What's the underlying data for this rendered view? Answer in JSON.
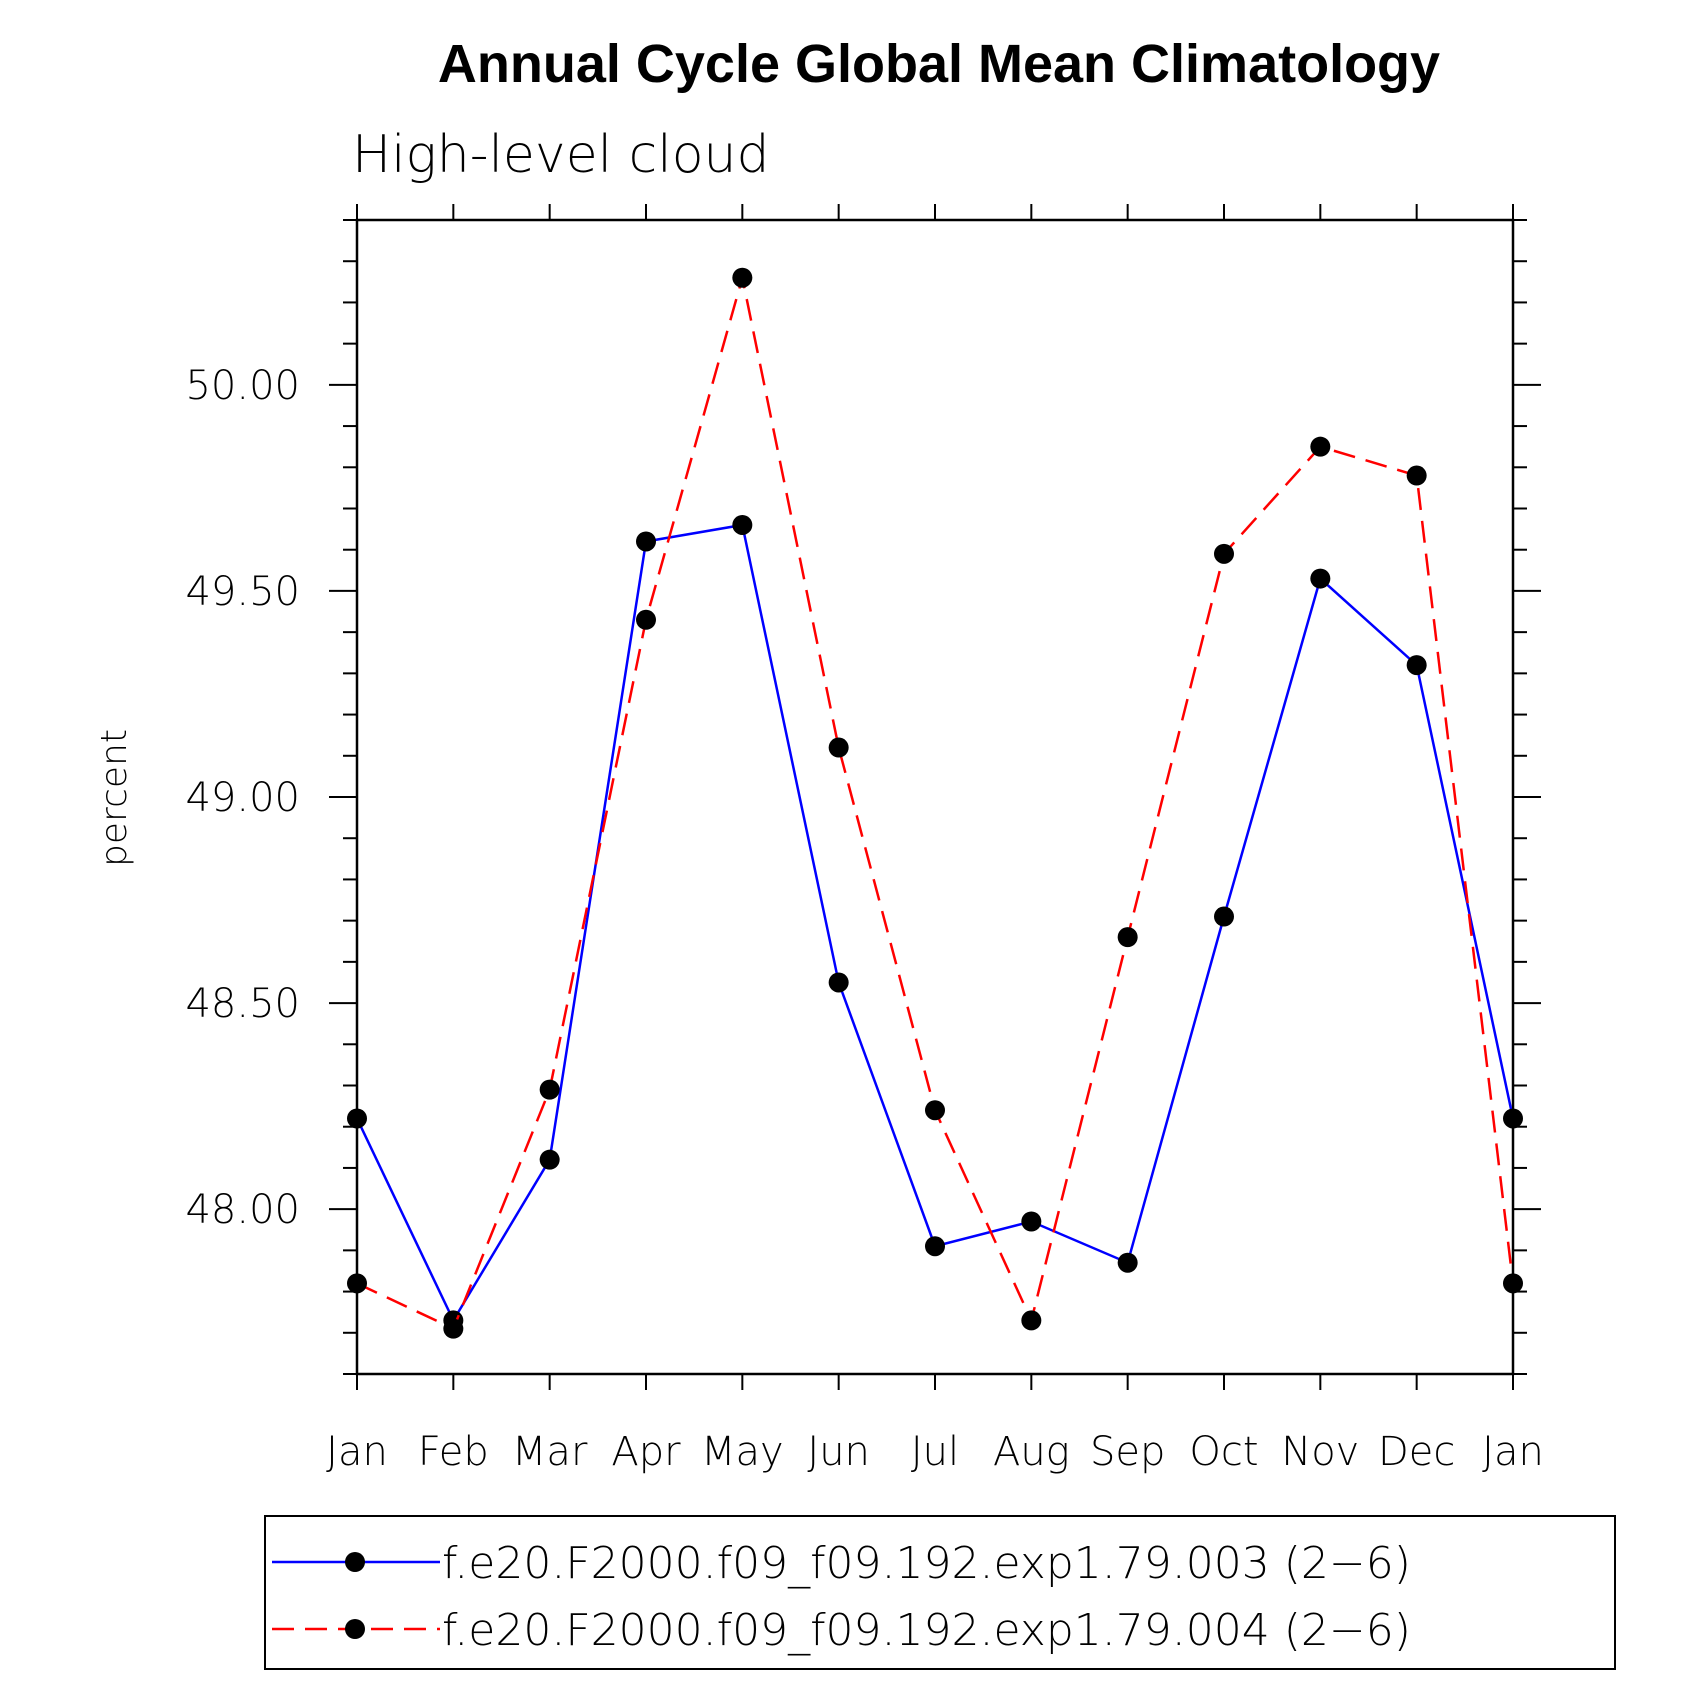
{
  "chart_data": {
    "type": "line",
    "title": "Annual Cycle Global Mean Climatology",
    "subtitle": "High-level cloud",
    "ylabel": "percent",
    "xlabel": "",
    "categories": [
      "Jan",
      "Feb",
      "Mar",
      "Apr",
      "May",
      "Jun",
      "Jul",
      "Aug",
      "Sep",
      "Oct",
      "Nov",
      "Dec",
      "Jan"
    ],
    "ylim": [
      47.6,
      50.4
    ],
    "yticks": [
      "48.00",
      "48.50",
      "49.00",
      "49.50",
      "50.00"
    ],
    "grid": false,
    "legend_position": "bottom",
    "series": [
      {
        "name": "f.e20.F2000.f09_f09.192.exp1.79.003 (2−6)",
        "color": "#0000ff",
        "dash": "solid",
        "marker": "circle",
        "values": [
          48.22,
          47.73,
          48.12,
          49.62,
          49.66,
          48.55,
          47.91,
          47.97,
          47.87,
          48.71,
          49.53,
          49.32,
          48.22
        ]
      },
      {
        "name": "f.e20.F2000.f09_f09.192.exp1.79.004 (2−6)",
        "color": "#ff0000",
        "dash": "dashed",
        "marker": "circle",
        "values": [
          47.82,
          47.71,
          48.29,
          49.43,
          50.26,
          49.12,
          48.24,
          47.73,
          48.66,
          49.59,
          49.85,
          49.78,
          47.82
        ]
      }
    ]
  }
}
